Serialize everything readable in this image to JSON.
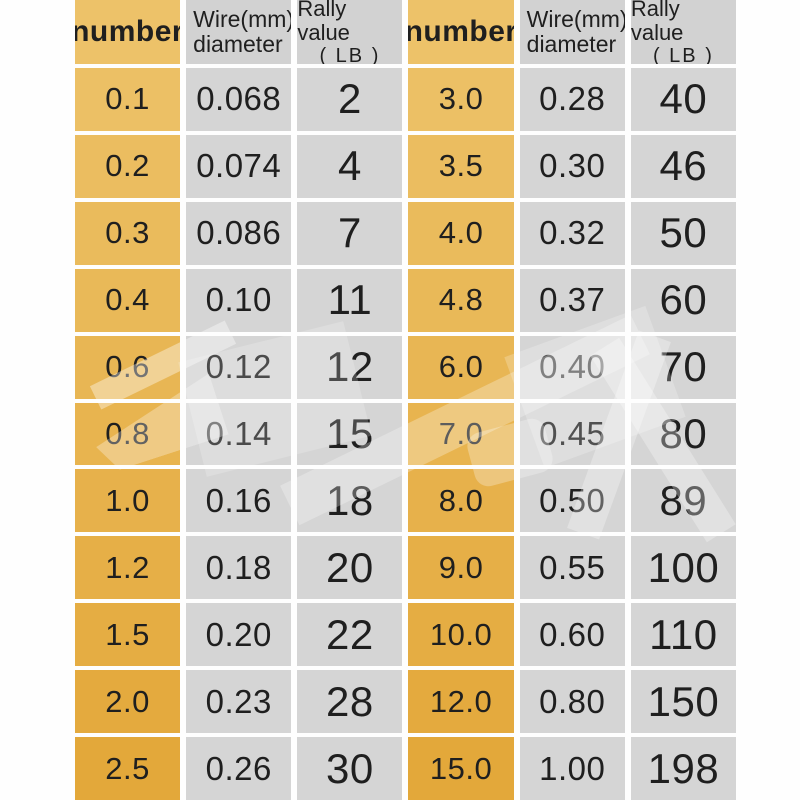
{
  "chart_data": {
    "type": "table",
    "column_headers": {
      "number": "number",
      "wire_line1": "Wire(mm)",
      "wire_line2": "diameter",
      "rally_line1": "Rally value",
      "rally_line2": "( LB )"
    },
    "left_rows": [
      [
        "0.1",
        "0.068",
        "2"
      ],
      [
        "0.2",
        "0.074",
        "4"
      ],
      [
        "0.3",
        "0.086",
        "7"
      ],
      [
        "0.4",
        "0.10",
        "11"
      ],
      [
        "0.6",
        "0.12",
        "12"
      ],
      [
        "0.8",
        "0.14",
        "15"
      ],
      [
        "1.0",
        "0.16",
        "18"
      ],
      [
        "1.2",
        "0.18",
        "20"
      ],
      [
        "1.5",
        "0.20",
        "22"
      ],
      [
        "2.0",
        "0.23",
        "28"
      ],
      [
        "2.5",
        "0.26",
        "30"
      ]
    ],
    "right_rows": [
      [
        "3.0",
        "0.28",
        "40"
      ],
      [
        "3.5",
        "0.30",
        "46"
      ],
      [
        "4.0",
        "0.32",
        "50"
      ],
      [
        "4.8",
        "0.37",
        "60"
      ],
      [
        "6.0",
        "0.40",
        "70"
      ],
      [
        "7.0",
        "0.45",
        "80"
      ],
      [
        "8.0",
        "0.50",
        "89"
      ],
      [
        "9.0",
        "0.55",
        "100"
      ],
      [
        "10.0",
        "0.60",
        "110"
      ],
      [
        "12.0",
        "0.80",
        "150"
      ],
      [
        "15.0",
        "1.00",
        "198"
      ]
    ]
  },
  "colors": {
    "gold_top": "#edc269",
    "gold_bottom": "#e3a83a",
    "gray_header": "#d2d2d2",
    "gray_cell": "#d5d5d5",
    "text": "#1f1f1f",
    "background": "#fefefe",
    "watermark": "#ffffff"
  }
}
